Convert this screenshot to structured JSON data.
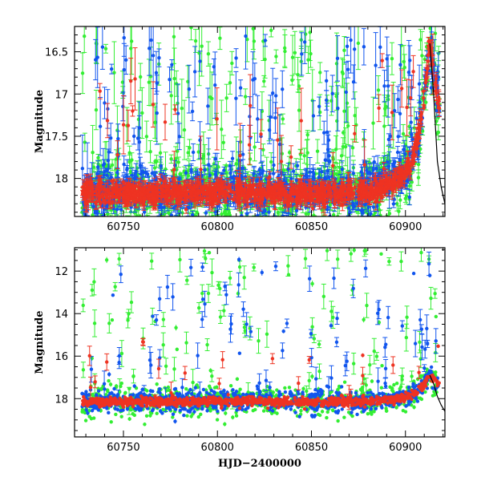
{
  "chart_data": [
    {
      "type": "scatter",
      "title": "",
      "xlabel": "",
      "ylabel": "Magnitude",
      "xlim": [
        60724,
        60921
      ],
      "ylim": [
        18.45,
        16.2
      ],
      "y_inverted": true,
      "grid": false,
      "x_ticks": [
        60750,
        60800,
        60850,
        60900
      ],
      "y_ticks": [
        16.5,
        17,
        17.5,
        18
      ],
      "x_tick_labels": [
        "60750",
        "60800",
        "60850",
        "60900"
      ],
      "y_tick_labels": [
        "16.5",
        "17",
        "17.5",
        "18"
      ],
      "series": [
        {
          "color": "#33ee33",
          "baseline": 18.18,
          "scatter": 0.22,
          "outlier_min": 16.2,
          "outlier_rate": 0.16
        },
        {
          "color": "#1155ee",
          "baseline": 18.15,
          "scatter": 0.14,
          "outlier_min": 16.3,
          "outlier_rate": 0.13
        },
        {
          "color": "#ee3322",
          "baseline": 18.17,
          "scatter": 0.06,
          "outlier_min": 16.6,
          "outlier_rate": 0.03
        }
      ],
      "flare": {
        "start": 60895,
        "peak_x": 60913,
        "peak_mag": 16.4,
        "end": 60918
      },
      "model_curve": [
        [
          60913,
          16.4
        ],
        [
          60915,
          17.0
        ],
        [
          60917,
          17.8
        ],
        [
          60919,
          18.1
        ],
        [
          60921,
          18.3
        ]
      ]
    },
    {
      "type": "scatter",
      "title": "",
      "xlabel": "HJD−2400000",
      "ylabel": "Magnitude",
      "xlim": [
        60724,
        60921
      ],
      "ylim": [
        19.8,
        10.9
      ],
      "y_inverted": true,
      "grid": false,
      "x_ticks": [
        60750,
        60800,
        60850,
        60900
      ],
      "y_ticks": [
        12,
        14,
        16,
        18
      ],
      "x_tick_labels": [
        "60750",
        "60800",
        "60850",
        "60900"
      ],
      "y_tick_labels": [
        "12",
        "14",
        "16",
        "18"
      ],
      "series": [
        {
          "color": "#33ee33",
          "baseline": 18.15,
          "scatter": 0.35,
          "outlier_min": 11.0,
          "outlier_rate": 0.12
        },
        {
          "color": "#1155ee",
          "baseline": 18.1,
          "scatter": 0.25,
          "outlier_min": 11.4,
          "outlier_rate": 0.1
        },
        {
          "color": "#ee3322",
          "baseline": 18.15,
          "scatter": 0.1,
          "outlier_min": 15.3,
          "outlier_rate": 0.03
        }
      ],
      "flare": {
        "start": 60895,
        "peak_x": 60913,
        "peak_mag": 16.9,
        "end": 60918
      },
      "model_curve": [
        [
          60913,
          16.9
        ],
        [
          60915,
          17.3
        ],
        [
          60917,
          17.9
        ],
        [
          60919,
          18.3
        ],
        [
          60921,
          18.6
        ]
      ]
    }
  ]
}
